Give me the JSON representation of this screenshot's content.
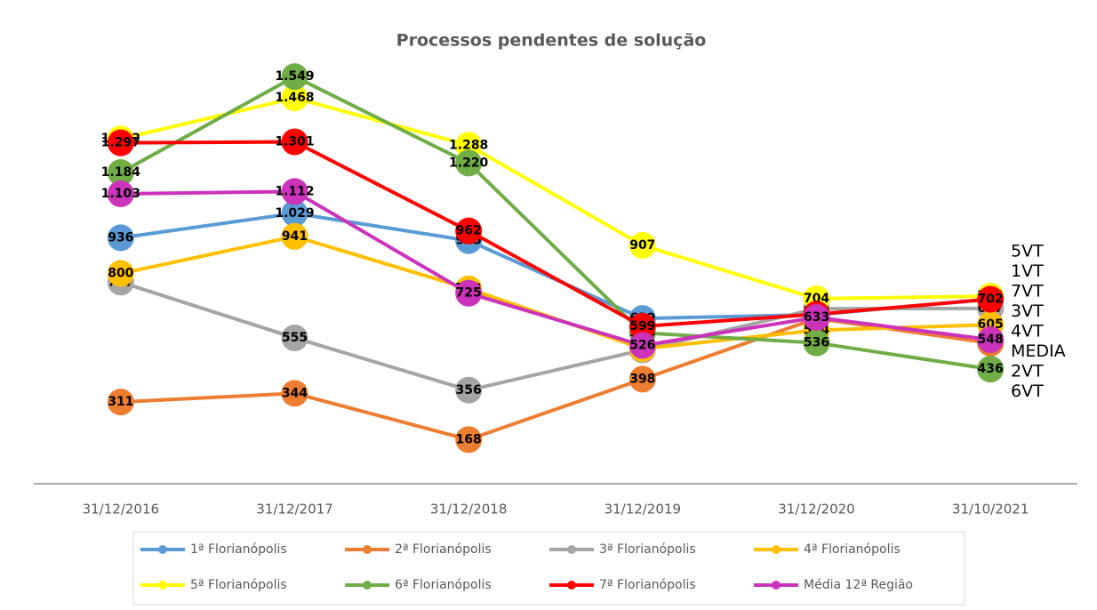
{
  "chart_data": {
    "type": "line",
    "title": "Processos pendentes de solução",
    "categories": [
      "31/12/2016",
      "31/12/2017",
      "31/12/2018",
      "31/12/2019",
      "31/12/2020",
      "31/10/2021"
    ],
    "ylim": [
      0,
      1800
    ],
    "series": [
      {
        "name": "1ª Florianópolis",
        "color": "#5b9bd5",
        "values": [
          936,
          1029,
          925,
          629,
          643,
          703
        ],
        "value_labels": [
          "936",
          "1.029",
          "925",
          "629",
          "643",
          "703"
        ]
      },
      {
        "name": "2ª Florianópolis",
        "color": "#ed7d31",
        "values": [
          311,
          344,
          168,
          398,
          629,
          535
        ],
        "value_labels": [
          "311",
          "344",
          "168",
          "398",
          "629",
          "535"
        ]
      },
      {
        "name": "3ª Florianópolis",
        "color": "#a5a5a5",
        "values": [
          767,
          555,
          356,
          509,
          666,
          667
        ],
        "value_labels": [
          "767",
          "555",
          "356",
          "509",
          "666",
          "667"
        ]
      },
      {
        "name": "4ª Florianópolis",
        "color": "#ffc000",
        "values": [
          800,
          941,
          742,
          514,
          584,
          605
        ],
        "value_labels": [
          "800",
          "941",
          "742",
          "514",
          "584",
          "605"
        ]
      },
      {
        "name": "5ª Florianópolis",
        "color": "#ffff00",
        "values": [
          1312,
          1468,
          1288,
          907,
          704,
          714
        ],
        "value_labels": [
          "1.312",
          "1.468",
          "1.288",
          "907",
          "704",
          "714"
        ]
      },
      {
        "name": "6ª Florianópolis",
        "color": "#70ad47",
        "values": [
          1184,
          1549,
          1220,
          574,
          536,
          436
        ],
        "value_labels": [
          "1.184",
          "1.549",
          "1.220",
          "574",
          "536",
          "436"
        ]
      },
      {
        "name": "7ª Florianópolis",
        "color": "#ff0000",
        "values": [
          1297,
          1301,
          962,
          599,
          645,
          702
        ],
        "value_labels": [
          "1.297",
          "1.301",
          "962",
          "599",
          "645",
          "702"
        ]
      },
      {
        "name": "Média 12ª Região",
        "color": "#cc33bb",
        "values": [
          1103,
          1112,
          725,
          526,
          633,
          548
        ],
        "value_labels": [
          "1.103",
          "1.112",
          "725",
          "526",
          "633",
          "548"
        ]
      }
    ],
    "end_labels": [
      "5VT",
      "1VT",
      "7VT",
      "3VT",
      "4VT",
      "MEDIA",
      "2VT",
      "6VT"
    ]
  }
}
